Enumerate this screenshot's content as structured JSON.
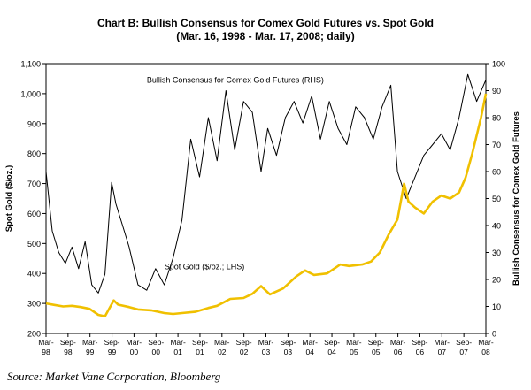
{
  "chart_data": {
    "type": "line",
    "title": "Chart B: Bullish Consensus for Comex Gold Futures vs. Spot Gold",
    "subtitle": "(Mar. 16, 1998 - Mar. 17, 2008; daily)",
    "ylabel_left": "Spot Gold ($/oz.)",
    "ylabel_right": "Bullish Consensus for Comex Gold Futures",
    "ylim_left": [
      200,
      1100
    ],
    "ylim_right": [
      0,
      100
    ],
    "yticks_left": [
      "200",
      "300",
      "400",
      "500",
      "600",
      "700",
      "800",
      "900",
      "1,000",
      "1,100"
    ],
    "yticks_right": [
      "0",
      "10",
      "20",
      "30",
      "40",
      "50",
      "60",
      "70",
      "80",
      "90",
      "100"
    ],
    "xticks": [
      [
        "Mar-",
        "98"
      ],
      [
        "Sep-",
        "98"
      ],
      [
        "Mar-",
        "99"
      ],
      [
        "Sep-",
        "99"
      ],
      [
        "Mar-",
        "00"
      ],
      [
        "Sep-",
        "00"
      ],
      [
        "Mar-",
        "01"
      ],
      [
        "Sep-",
        "01"
      ],
      [
        "Mar-",
        "02"
      ],
      [
        "Sep-",
        "02"
      ],
      [
        "Mar-",
        "03"
      ],
      [
        "Sep-",
        "03"
      ],
      [
        "Mar-",
        "04"
      ],
      [
        "Sep-",
        "04"
      ],
      [
        "Mar-",
        "05"
      ],
      [
        "Sep-",
        "05"
      ],
      [
        "Mar-",
        "06"
      ],
      [
        "Sep-",
        "06"
      ],
      [
        "Mar-",
        "07"
      ],
      [
        "Sep-",
        "07"
      ],
      [
        "Mar-",
        "08"
      ]
    ],
    "series": [
      {
        "name": "Bullish Consensus for Comex Gold Futures (RHS)",
        "axis": "right",
        "color": "#000000",
        "x": [
          1998.21,
          1998.35,
          1998.5,
          1998.65,
          1998.8,
          1998.95,
          1999.1,
          1999.25,
          1999.4,
          1999.55,
          1999.7,
          1999.8,
          1999.95,
          2000.1,
          2000.3,
          2000.5,
          2000.7,
          2000.9,
          2001.1,
          2001.3,
          2001.5,
          2001.7,
          2001.9,
          2002.1,
          2002.3,
          2002.5,
          2002.7,
          2002.9,
          2003.1,
          2003.25,
          2003.45,
          2003.65,
          2003.85,
          2004.05,
          2004.25,
          2004.45,
          2004.65,
          2004.85,
          2005.05,
          2005.25,
          2005.45,
          2005.65,
          2005.85,
          2006.05,
          2006.2,
          2006.4,
          2006.6,
          2006.8,
          2007.0,
          2007.2,
          2007.4,
          2007.6,
          2007.8,
          2008.0,
          2008.21
        ],
        "values": [
          60,
          38,
          30,
          26,
          32,
          24,
          34,
          18,
          15,
          22,
          56,
          48,
          40,
          32,
          18,
          16,
          24,
          18,
          28,
          42,
          72,
          58,
          80,
          64,
          90,
          68,
          86,
          82,
          60,
          76,
          66,
          80,
          86,
          78,
          88,
          72,
          86,
          76,
          70,
          84,
          80,
          72,
          84,
          92,
          60,
          50,
          58,
          66,
          70,
          74,
          68,
          80,
          96,
          86,
          94
        ]
      },
      {
        "name": "Spot Gold ($/oz.; LHS)",
        "axis": "left",
        "color": "#f0c000",
        "x": [
          1998.21,
          1998.4,
          1998.6,
          1998.8,
          1999.0,
          1999.2,
          1999.4,
          1999.55,
          1999.75,
          1999.85,
          2000.1,
          2000.3,
          2000.6,
          2000.9,
          2001.1,
          2001.3,
          2001.6,
          2001.9,
          2002.1,
          2002.4,
          2002.7,
          2002.9,
          2003.1,
          2003.3,
          2003.6,
          2003.9,
          2004.1,
          2004.3,
          2004.6,
          2004.9,
          2005.1,
          2005.4,
          2005.6,
          2005.8,
          2006.0,
          2006.2,
          2006.35,
          2006.45,
          2006.6,
          2006.8,
          2007.0,
          2007.2,
          2007.4,
          2007.6,
          2007.75,
          2007.9,
          2008.1,
          2008.21
        ],
        "values": [
          300,
          295,
          290,
          292,
          288,
          282,
          262,
          257,
          310,
          296,
          288,
          280,
          277,
          268,
          265,
          268,
          272,
          285,
          292,
          315,
          318,
          332,
          358,
          330,
          350,
          390,
          410,
          395,
          400,
          430,
          425,
          430,
          440,
          470,
          530,
          580,
          700,
          640,
          620,
          600,
          640,
          660,
          650,
          670,
          720,
          800,
          920,
          1000
        ]
      }
    ],
    "annotations": [
      {
        "text": "Bullish Consensus for Comex Gold Futures (RHS)",
        "x": 2000.5,
        "y_left": 1036
      },
      {
        "text": "Spot Gold ($/oz.; LHS)",
        "x": 2000.9,
        "y_left": 414
      }
    ],
    "grid": false,
    "legend": "none"
  },
  "source": "Source: Market Vane Corporation, Bloomberg"
}
